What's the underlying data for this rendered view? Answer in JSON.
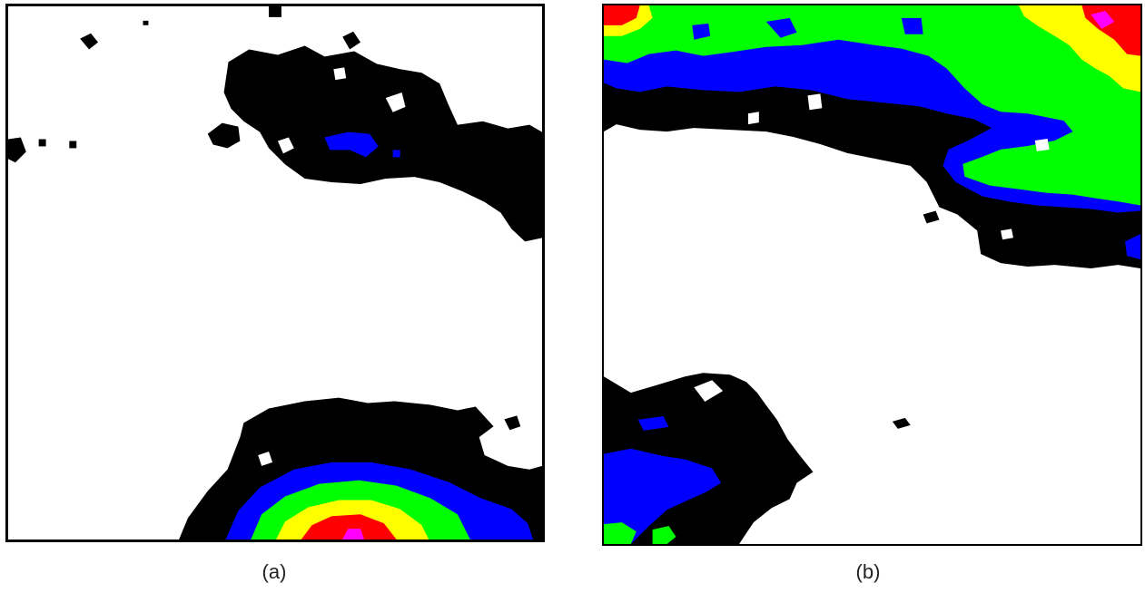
{
  "captions": {
    "a": "(a)",
    "b": "(b)"
  },
  "palette": {
    "black": "#000000",
    "blue": "#0000ff",
    "green": "#00ff00",
    "yellow": "#ffff00",
    "red": "#ff0000",
    "magenta": "#ff00ff",
    "white": "#ffffff"
  }
}
